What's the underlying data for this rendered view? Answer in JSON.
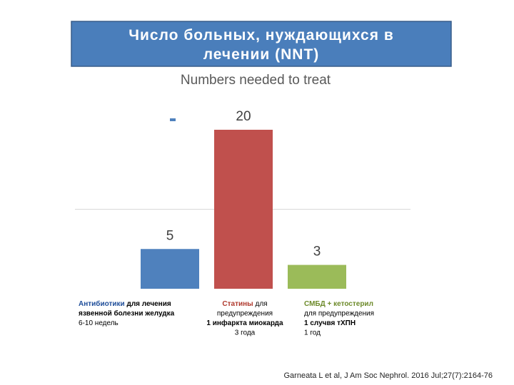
{
  "header": {
    "title": "Число больных, нуждающихся в лечении (NNT)"
  },
  "chart_data": {
    "type": "bar",
    "title": "Numbers needed to treat",
    "categories": [
      null,
      null,
      null
    ],
    "values": [
      5,
      20,
      3
    ],
    "colors": [
      "#4f81bd",
      "#c0504d",
      "#9bbb59"
    ],
    "ylim": [
      0,
      20
    ],
    "yticks": [
      10
    ],
    "grid": true,
    "tick_labels": false,
    "legend_marker_color": "#4f81bd"
  },
  "category_labels": [
    {
      "align": "start",
      "lines": [
        [
          {
            "text": "Антибиотики",
            "color": "#1f4e9a",
            "bold": true
          },
          {
            "text": " для лечения",
            "color": "#000000",
            "bold": true
          }
        ],
        [
          {
            "text": "язвенной болезни желудка",
            "color": "#000000",
            "bold": true
          }
        ],
        [
          {
            "text": "6-10 недель",
            "color": "#000000",
            "bold": false
          }
        ]
      ]
    },
    {
      "align": "middle",
      "lines": [
        [
          {
            "text": "Статины",
            "color": "#b03a2e",
            "bold": true
          },
          {
            "text": " для",
            "color": "#000000",
            "bold": false
          }
        ],
        [
          {
            "text": "предупреждения",
            "color": "#000000",
            "bold": false
          }
        ],
        [
          {
            "text": "1 инфаркта миокарда",
            "color": "#000000",
            "bold": true
          }
        ],
        [
          {
            "text": "3 года",
            "color": "#000000",
            "bold": false
          }
        ]
      ]
    },
    {
      "align": "start",
      "lines": [
        [
          {
            "text": "СМБД + кетостерил",
            "color": "#6d8a2a",
            "bold": true
          }
        ],
        [
          {
            "text": "для предупреждения",
            "color": "#000000",
            "bold": false
          }
        ],
        [
          {
            "text": "1 случвя тХПН",
            "color": "#000000",
            "bold": true
          }
        ],
        [
          {
            "text": "1 год",
            "color": "#000000",
            "bold": false
          }
        ]
      ]
    }
  ],
  "citation": "Garneata L et al, J Am Soc Nephrol. 2016 Jul;27(7):2164-76"
}
